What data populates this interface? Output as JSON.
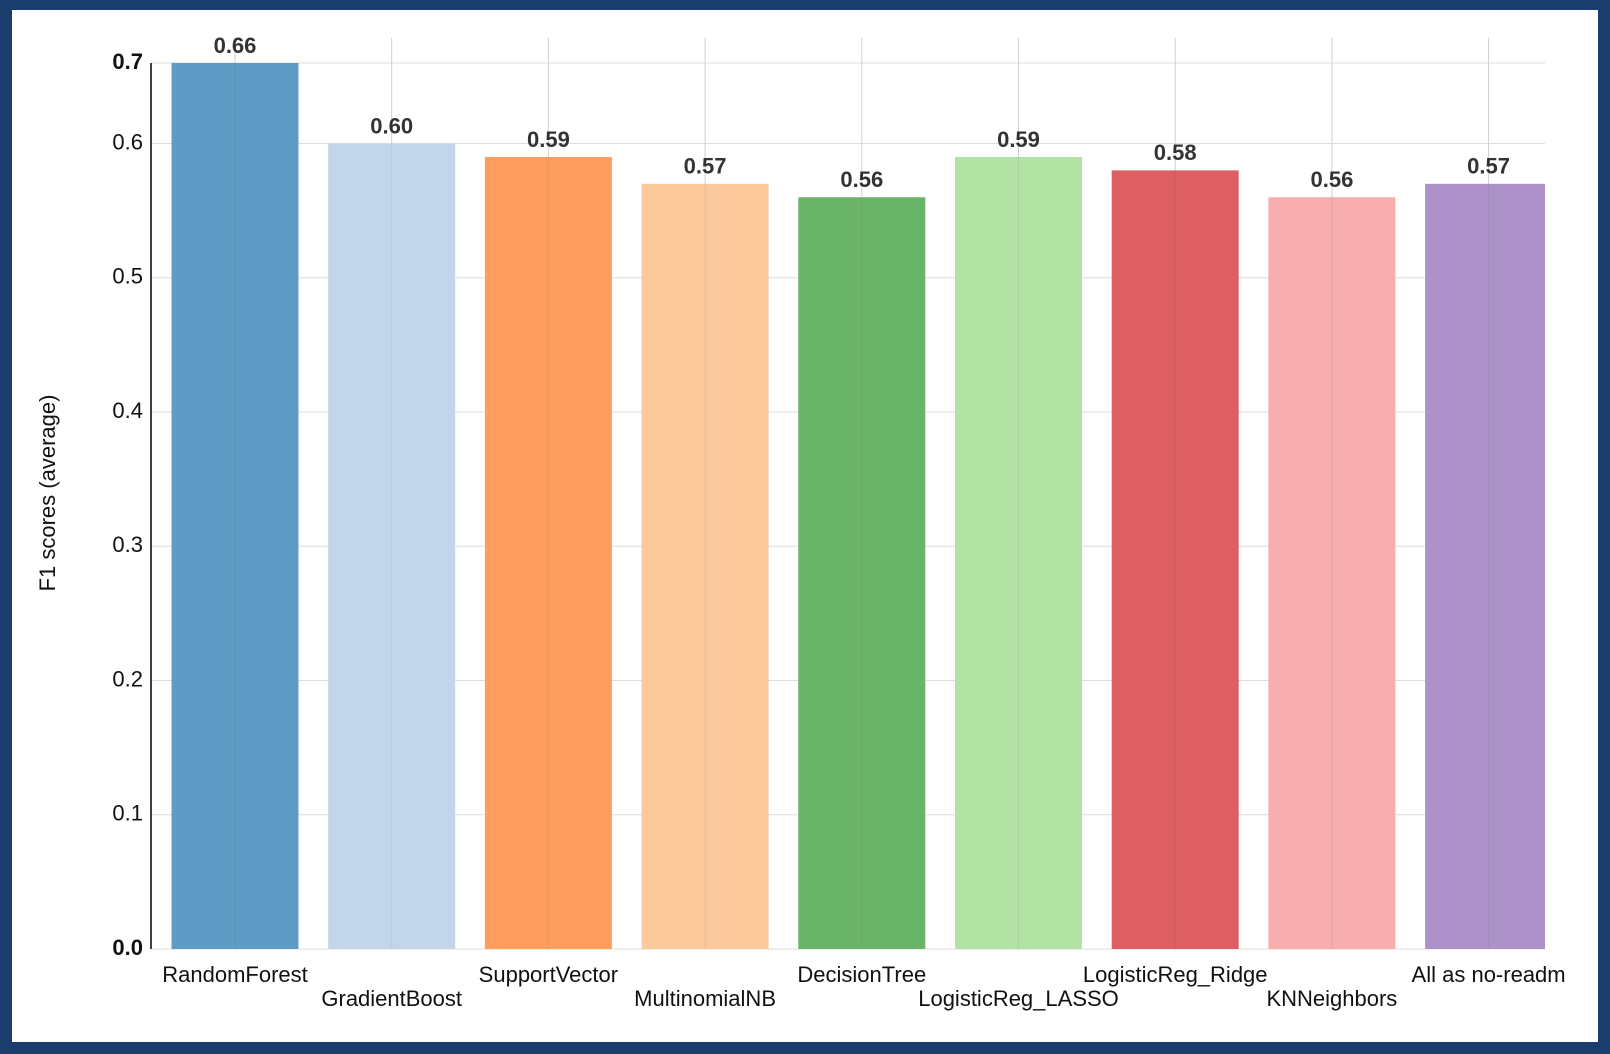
{
  "chart_data": {
    "type": "bar",
    "y_label": "F1 scores (average)",
    "categories": [
      "RandomForest",
      "GradientBoost",
      "SupportVector",
      "MultinomialNB",
      "DecisionTree",
      "LogisticReg_LASSO",
      "LogisticReg_Ridge",
      "KNNeighbors",
      "All as no-readm"
    ],
    "values": [
      0.66,
      0.6,
      0.59,
      0.57,
      0.56,
      0.59,
      0.58,
      0.56,
      0.57
    ],
    "value_labels": [
      "0.66",
      "0.60",
      "0.59",
      "0.57",
      "0.56",
      "0.59",
      "0.58",
      "0.56",
      "0.57"
    ],
    "colors": [
      "#5f9cc5",
      "#c3d5eb",
      "#fd9d5e",
      "#fbc99c",
      "#6ab467",
      "#b2e3a5",
      "#dd5e63",
      "#f8adae",
      "#ac92c9"
    ],
    "ylim": [
      0,
      0.66
    ],
    "yticks": [
      {
        "value": 0,
        "label": "0.0"
      },
      0.1,
      0.2,
      0.3,
      0.4,
      0.5,
      0.6,
      {
        "value": 0.66,
        "label": "0.7"
      }
    ],
    "grid": true
  }
}
